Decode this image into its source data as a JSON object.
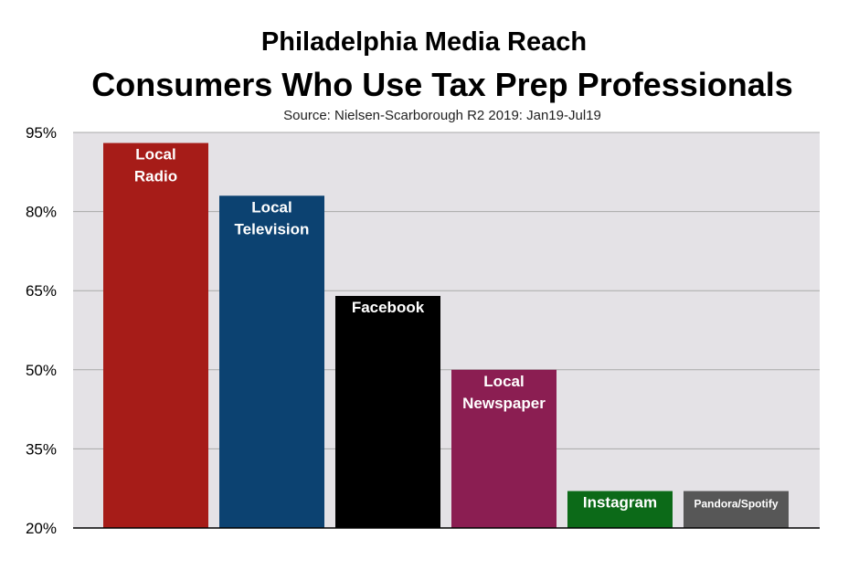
{
  "chart_data": {
    "type": "bar",
    "title": "Philadelphia Media Reach",
    "subtitle": "Consumers Who Use Tax Prep Professionals",
    "source": "Source: Nielsen-Scarborough R2 2019: Jan19-Jul19",
    "ylim": [
      20,
      95
    ],
    "yticks": [
      "95%",
      "80%",
      "65%",
      "50%",
      "35%",
      "20%"
    ],
    "ytick_values": [
      95,
      80,
      65,
      50,
      35,
      20
    ],
    "grid": true,
    "legend": "none",
    "categories": [
      {
        "name": "Local Radio",
        "lines": [
          "Local",
          "Radio"
        ],
        "value": 93,
        "color": "#A61C18"
      },
      {
        "name": "Local Television",
        "lines": [
          "Local",
          "Television"
        ],
        "value": 83,
        "color": "#0C4271"
      },
      {
        "name": "Facebook",
        "lines": [
          "Facebook"
        ],
        "value": 64,
        "color": "#000000"
      },
      {
        "name": "Local Newspaper",
        "lines": [
          "Local",
          "Newspaper"
        ],
        "value": 50,
        "color": "#8B1E52"
      },
      {
        "name": "Instagram",
        "lines": [
          "Instagram"
        ],
        "value": 27,
        "color": "#0C6A18"
      },
      {
        "name": "Pandora/Spotify",
        "lines": [
          "Pandora/Spotify"
        ],
        "value": 27,
        "color": "#575757"
      }
    ],
    "plot_background": "#E4E2E6"
  }
}
